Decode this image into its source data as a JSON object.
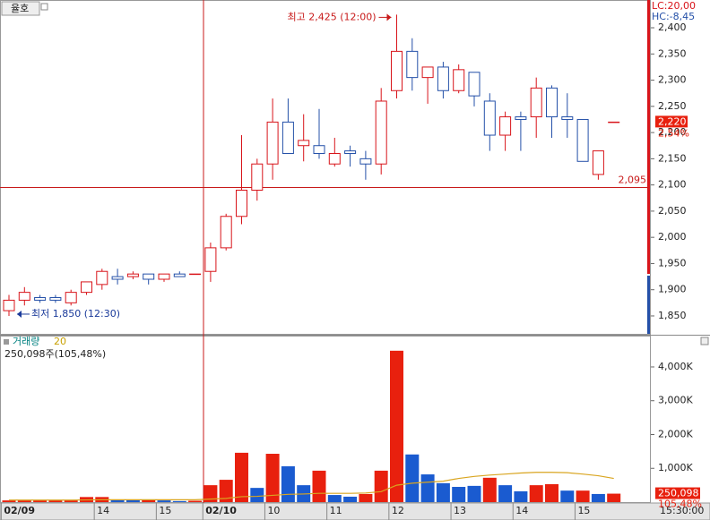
{
  "chart_data": [
    {
      "type": "candlestick",
      "title": "율호",
      "lc_label": "LC:20,00",
      "hc_label": "HC:-8,45",
      "up_color": "#d8141a",
      "down_color": "#2450a8",
      "open": [
        1860,
        1880,
        1885,
        1885,
        1875,
        1895,
        1910,
        1925,
        1925,
        1930,
        1920,
        1930,
        1930,
        1935,
        1980,
        2040,
        2090,
        2140,
        2220,
        2175,
        2175,
        2140,
        2165,
        2150,
        2140,
        2280,
        2355,
        2305,
        2325,
        2280,
        2315,
        2260,
        2195,
        2230,
        2230,
        2285,
        2230,
        2225,
        2120,
        2220
      ],
      "high": [
        1890,
        1905,
        1890,
        1890,
        1900,
        1915,
        1940,
        1940,
        1935,
        1930,
        1930,
        1935,
        1930,
        1990,
        2045,
        2195,
        2150,
        2265,
        2265,
        2235,
        2245,
        2190,
        2175,
        2165,
        2285,
        2425,
        2380,
        2325,
        2335,
        2330,
        2315,
        2275,
        2240,
        2240,
        2305,
        2290,
        2275,
        2225,
        2165,
        2220
      ],
      "low": [
        1850,
        1870,
        1875,
        1875,
        1870,
        1890,
        1900,
        1910,
        1920,
        1910,
        1915,
        1925,
        1930,
        1915,
        1975,
        2025,
        2070,
        2110,
        2160,
        2145,
        2150,
        2135,
        2135,
        2110,
        2120,
        2265,
        2280,
        2255,
        2265,
        2275,
        2250,
        2165,
        2165,
        2165,
        2190,
        2190,
        2190,
        2145,
        2110,
        2220
      ],
      "close": [
        1880,
        1895,
        1880,
        1880,
        1895,
        1915,
        1935,
        1920,
        1930,
        1920,
        1930,
        1925,
        1930,
        1980,
        2040,
        2090,
        2140,
        2220,
        2160,
        2185,
        2160,
        2160,
        2160,
        2140,
        2260,
        2355,
        2305,
        2325,
        2280,
        2320,
        2270,
        2195,
        2230,
        2225,
        2285,
        2230,
        2225,
        2145,
        2165,
        2220
      ],
      "high_annotation": "최고 2,425 (12:00)",
      "low_annotation": "최저 1,850 (12:30)",
      "crosshair": {
        "value": 2095,
        "label": "2,095"
      },
      "current_label": "2,220",
      "current_change": "2,54%",
      "ylim": [
        1817.5,
        2453
      ],
      "yticks": [
        {
          "value": 1850,
          "label": "1,850"
        },
        {
          "value": 1900,
          "label": "1,900"
        },
        {
          "value": 1950,
          "label": "1,950"
        },
        {
          "value": 2000,
          "label": "2,000"
        },
        {
          "value": 2050,
          "label": "2,050"
        },
        {
          "value": 2100,
          "label": "2,100"
        },
        {
          "value": 2150,
          "label": "2,150"
        },
        {
          "value": 2200,
          "label": "2,200"
        },
        {
          "value": 2250,
          "label": "2,250"
        },
        {
          "value": 2300,
          "label": "2,300"
        },
        {
          "value": 2350,
          "label": "2,350"
        },
        {
          "value": 2400,
          "label": "2,400"
        }
      ],
      "xticks": [
        {
          "index": 0,
          "label": "02/09"
        },
        {
          "index": 6,
          "label": "14"
        },
        {
          "index": 10,
          "label": "15"
        },
        {
          "index": 13,
          "label": "02/10"
        },
        {
          "index": 17,
          "label": "10"
        },
        {
          "index": 21,
          "label": "11"
        },
        {
          "index": 25,
          "label": "12"
        },
        {
          "index": 29,
          "label": "13"
        },
        {
          "index": 33,
          "label": "14"
        },
        {
          "index": 37,
          "label": "15"
        }
      ],
      "time_label": "15:30:00"
    },
    {
      "type": "bar",
      "name": "거래량",
      "period": 20,
      "info": "250,098주(105,48%)",
      "values": [
        50,
        50,
        50,
        50,
        50,
        150,
        150,
        80,
        80,
        80,
        50,
        30,
        40,
        500,
        660,
        1460,
        420,
        1430,
        1060,
        500,
        930,
        210,
        160,
        240,
        930,
        4480,
        1410,
        820,
        560,
        450,
        480,
        720,
        500,
        320,
        500,
        530,
        340,
        340,
        240,
        250.098
      ],
      "colors": [
        "#e8200e",
        "#e8200e",
        "#e8200e",
        "#e8200e",
        "#e8200e",
        "#e8200e",
        "#e8200e",
        "#1a5bd0",
        "#1a5bd0",
        "#e8200e",
        "#1a5bd0",
        "#1a5bd0",
        "#e8200e",
        "#e8200e",
        "#e8200e",
        "#e8200e",
        "#1a5bd0",
        "#e8200e",
        "#1a5bd0",
        "#1a5bd0",
        "#e8200e",
        "#1a5bd0",
        "#1a5bd0",
        "#e8200e",
        "#e8200e",
        "#e8200e",
        "#1a5bd0",
        "#1a5bd0",
        "#1a5bd0",
        "#1a5bd0",
        "#1a5bd0",
        "#e8200e",
        "#1a5bd0",
        "#1a5bd0",
        "#e8200e",
        "#e8200e",
        "#1a5bd0",
        "#e8200e",
        "#1a5bd0",
        "#e8200e"
      ],
      "value_labels_last": "250,098",
      "last_change": "105,48%",
      "ma": {
        "color": "#d9a520",
        "values": [
          60,
          60,
          60,
          60,
          60,
          65,
          70,
          70,
          70,
          70,
          70,
          70,
          70,
          90,
          110,
          160,
          170,
          200,
          230,
          240,
          260,
          260,
          260,
          270,
          310,
          500,
          560,
          590,
          620,
          700,
          760,
          800,
          830,
          860,
          880,
          880,
          870,
          830,
          780,
          700
        ]
      },
      "ylim": [
        0,
        4900
      ],
      "yticks": [
        {
          "value": 1000,
          "label": "1,000K"
        },
        {
          "value": 2000,
          "label": "2,000K"
        },
        {
          "value": 3000,
          "label": "3,000K"
        },
        {
          "value": 4000,
          "label": "4,000K"
        }
      ]
    }
  ]
}
